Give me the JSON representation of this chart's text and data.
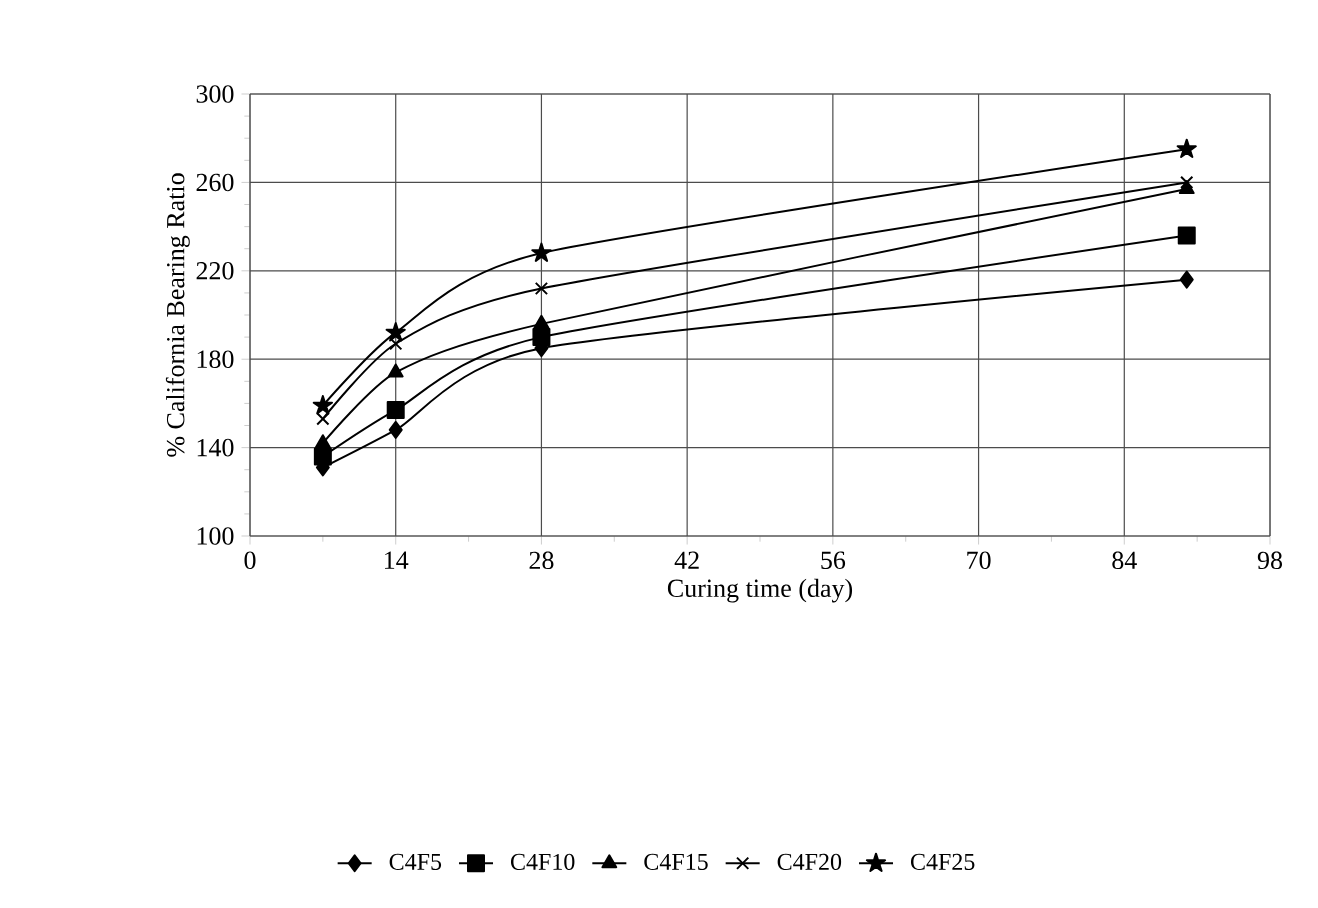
{
  "chart_data": {
    "type": "line",
    "xlabel": "Curing time (day)",
    "ylabel": "% California Bearing Ratio",
    "x": [
      7,
      14,
      28,
      90
    ],
    "series": [
      {
        "name": "C4F5",
        "color": "#000000",
        "marker": "diamond",
        "values": [
          131,
          148,
          185,
          216
        ]
      },
      {
        "name": "C4F10",
        "color": "#000000",
        "marker": "square",
        "values": [
          136,
          157,
          190,
          236
        ]
      },
      {
        "name": "C4F15",
        "color": "#000000",
        "marker": "triangle",
        "values": [
          142,
          174,
          196,
          257
        ]
      },
      {
        "name": "C4F20",
        "color": "#000000",
        "marker": "cross",
        "values": [
          153,
          187,
          212,
          260
        ]
      },
      {
        "name": "C4F25",
        "color": "#000000",
        "marker": "star",
        "values": [
          159,
          192,
          228,
          275
        ]
      }
    ],
    "xlim": [
      0,
      98
    ],
    "xticks": [
      0,
      14,
      28,
      42,
      56,
      70,
      84,
      98
    ],
    "ylim": [
      100,
      300
    ],
    "yticks": [
      100,
      140,
      180,
      220,
      260,
      300
    ],
    "grid": true,
    "legend": "bottom",
    "line_style": "solid"
  }
}
